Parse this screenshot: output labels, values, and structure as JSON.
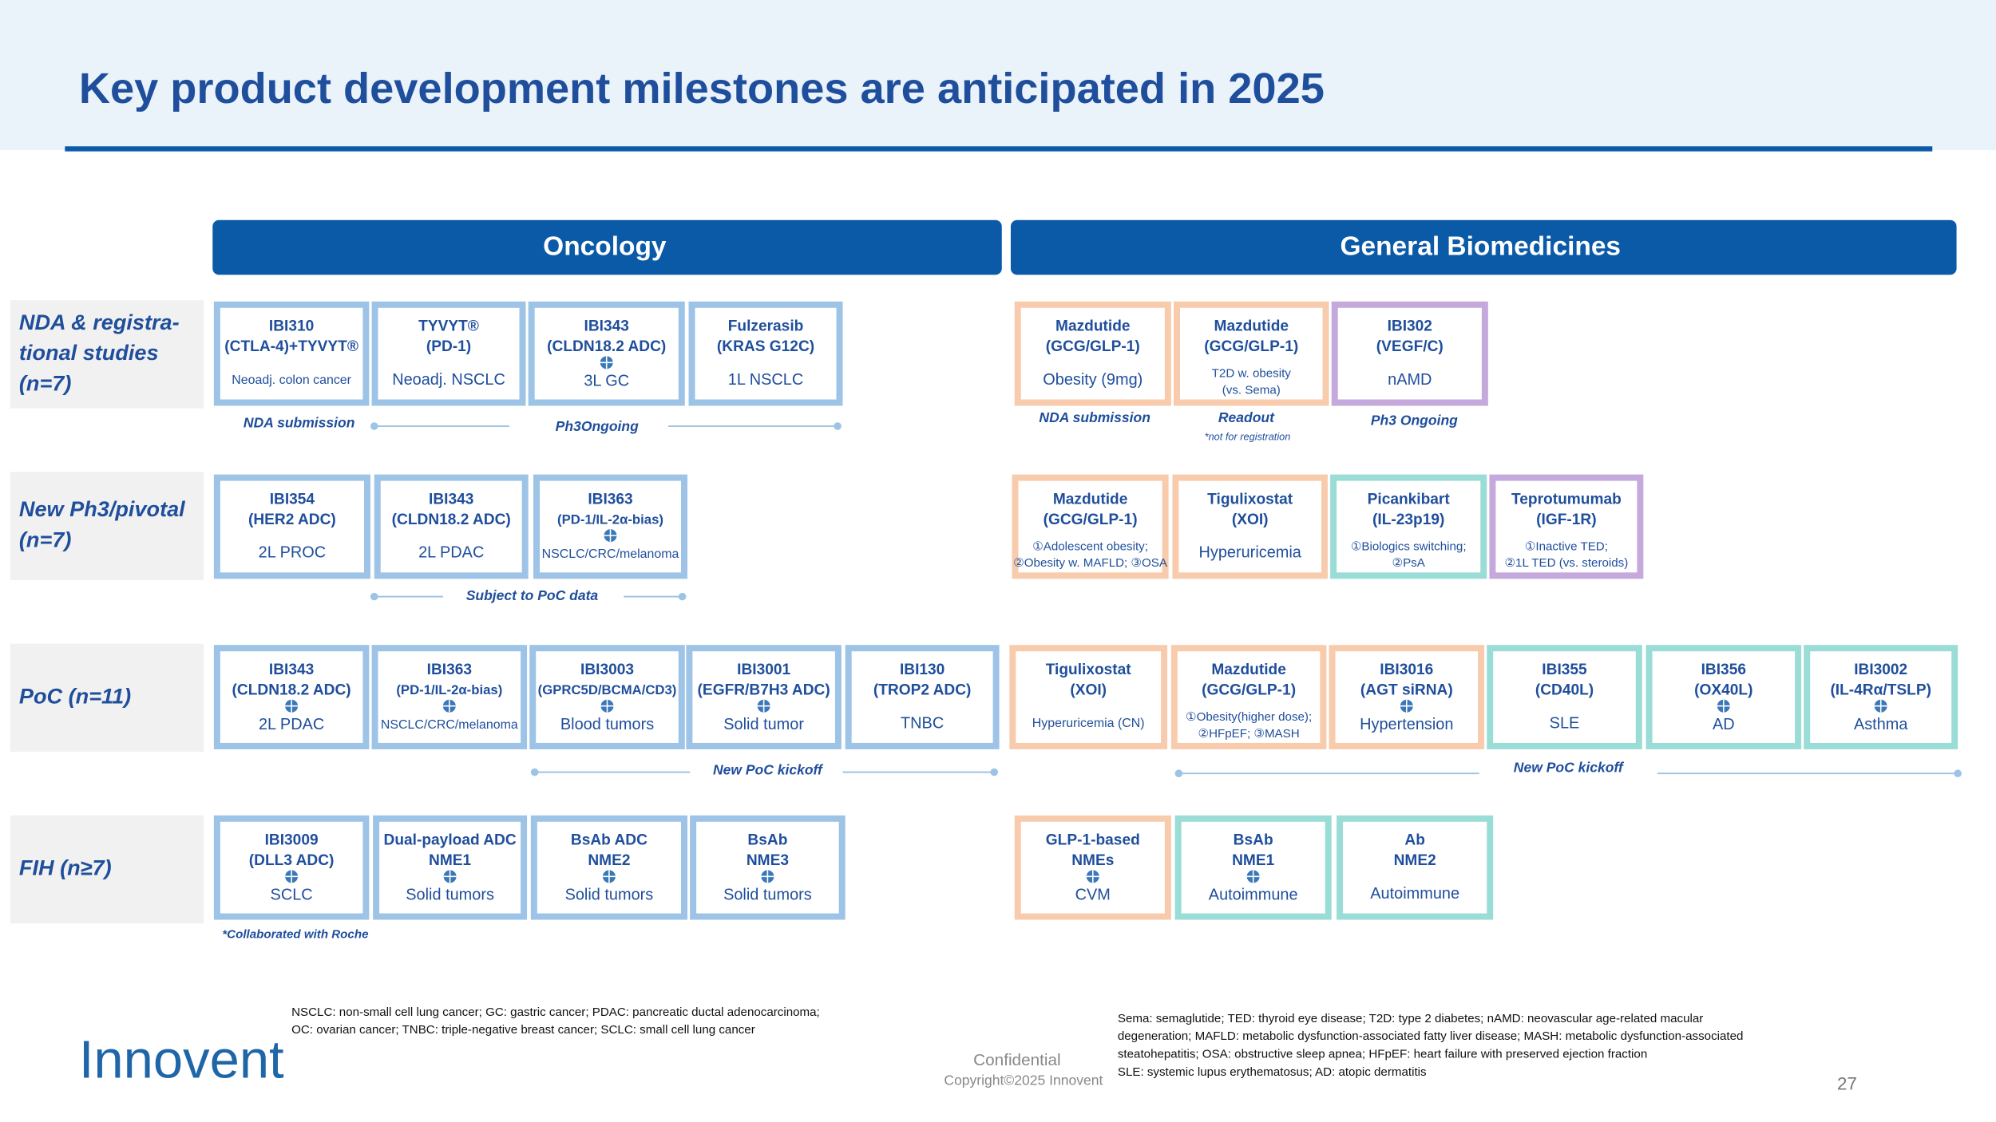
{
  "header": {
    "title": "Key product development milestones are  anticipated in 2025"
  },
  "sections": [
    "Oncology",
    "General Biomedicines"
  ],
  "rows": [
    {
      "label": [
        "NDA  & registra-",
        "tional studies",
        "(n=7)"
      ],
      "boxes": [
        {
          "lines": [
            "IBI310",
            "(CTLA-4)+TYVYT®",
            "Neoadj. colon cancer"
          ],
          "color": "#9dc3e6",
          "global": false
        },
        {
          "lines": [
            "TYVYT®",
            "(PD-1)",
            "Neoadj. NSCLC"
          ],
          "color": "#9dc3e6",
          "global": false
        },
        {
          "lines": [
            "IBI343",
            "(CLDN18.2 ADC)",
            "3L GC"
          ],
          "color": "#9dc3e6",
          "global": true
        },
        {
          "lines": [
            "Fulzerasib",
            "(KRAS G12C)",
            "1L NSCLC"
          ],
          "color": "#9dc3e6",
          "global": false
        },
        {
          "lines": [
            "Mazdutide",
            "(GCG/GLP-1)",
            "Obesity (9mg)"
          ],
          "color": "#f8cbad",
          "global": false
        },
        {
          "lines": [
            "Mazdutide",
            "(GCG/GLP-1)",
            "T2D w. obesity",
            "(vs. Sema)"
          ],
          "color": "#f8cbad",
          "global": false
        },
        {
          "lines": [
            "IBI302",
            "(VEGF/C)",
            "nAMD"
          ],
          "color": "#c5a9dc",
          "global": false
        }
      ],
      "notes": [
        "NDA submission",
        "Ph3Ongoing",
        "NDA submission",
        "Readout",
        "*not for registration",
        "Ph3 Ongoing"
      ]
    },
    {
      "label": [
        "New Ph3/pivotal",
        "(n=7)"
      ],
      "boxes": [
        {
          "lines": [
            "IBI354",
            "(HER2 ADC)",
            "2L PROC"
          ],
          "color": "#9dc3e6",
          "global": false
        },
        {
          "lines": [
            "IBI343",
            "(CLDN18.2 ADC)",
            "2L PDAC"
          ],
          "color": "#9dc3e6",
          "global": false
        },
        {
          "lines": [
            "IBI363",
            "(PD-1/IL-2α-bias)",
            "NSCLC/CRC/melanoma"
          ],
          "color": "#9dc3e6",
          "global": true
        },
        {
          "lines": [
            "Mazdutide",
            "(GCG/GLP-1)",
            "①Adolescent obesity;",
            "②Obesity w. MAFLD; ③OSA"
          ],
          "color": "#f8cbad",
          "global": false
        },
        {
          "lines": [
            "Tigulixostat",
            "(XOI)",
            "Hyperuricemia"
          ],
          "color": "#f8cbad",
          "global": false
        },
        {
          "lines": [
            "Picankibart",
            "(IL-23p19)",
            "①Biologics switching;",
            "②PsA"
          ],
          "color": "#9adcd6",
          "global": false
        },
        {
          "lines": [
            "Teprotumumab",
            "(IGF-1R)",
            "①Inactive TED;",
            "②1L TED (vs. steroids)"
          ],
          "color": "#c5a9dc",
          "global": false
        }
      ],
      "notes": [
        "Subject to PoC data"
      ]
    },
    {
      "label": [
        "PoC (n=11)"
      ],
      "boxes": [
        {
          "lines": [
            "IBI343",
            "(CLDN18.2 ADC)",
            "2L PDAC"
          ],
          "color": "#9dc3e6",
          "global": true
        },
        {
          "lines": [
            "IBI363",
            "(PD-1/IL-2α-bias)",
            "NSCLC/CRC/melanoma"
          ],
          "color": "#9dc3e6",
          "global": true
        },
        {
          "lines": [
            "IBI3003",
            "(GPRC5D/BCMA/CD3)",
            "Blood tumors"
          ],
          "color": "#9dc3e6",
          "global": true
        },
        {
          "lines": [
            "IBI3001",
            "(EGFR/B7H3 ADC)",
            "Solid tumor"
          ],
          "color": "#9dc3e6",
          "global": true
        },
        {
          "lines": [
            "IBI130",
            "(TROP2 ADC)",
            "TNBC"
          ],
          "color": "#9dc3e6",
          "global": false
        },
        {
          "lines": [
            "Tigulixostat",
            "(XOI)",
            "Hyperuricemia (CN)"
          ],
          "color": "#f8cbad",
          "global": false
        },
        {
          "lines": [
            "Mazdutide",
            "(GCG/GLP-1)",
            "①Obesity(higher dose);",
            "②HFpEF; ③MASH"
          ],
          "color": "#f8cbad",
          "global": false
        },
        {
          "lines": [
            "IBI3016",
            "(AGT siRNA)",
            "Hypertension"
          ],
          "color": "#f8cbad",
          "global": true
        },
        {
          "lines": [
            "IBI355",
            "(CD40L)",
            "SLE"
          ],
          "color": "#9adcd6",
          "global": false
        },
        {
          "lines": [
            "IBI356",
            "(OX40L)",
            "AD"
          ],
          "color": "#9adcd6",
          "global": true
        },
        {
          "lines": [
            "IBI3002",
            "(IL-4Rα/TSLP)",
            "Asthma"
          ],
          "color": "#9adcd6",
          "global": true
        }
      ],
      "notes": [
        "New PoC kickoff",
        "New PoC kickoff"
      ]
    },
    {
      "label": [
        "FIH (n≥7)"
      ],
      "boxes": [
        {
          "lines": [
            "IBI3009",
            "(DLL3 ADC)",
            "SCLC"
          ],
          "color": "#9dc3e6",
          "global": true
        },
        {
          "lines": [
            "Dual-payload ADC",
            "NME1",
            "Solid tumors"
          ],
          "color": "#9dc3e6",
          "global": true
        },
        {
          "lines": [
            "BsAb ADC",
            "NME2",
            "Solid tumors"
          ],
          "color": "#9dc3e6",
          "global": true
        },
        {
          "lines": [
            "BsAb",
            "NME3",
            "Solid tumors"
          ],
          "color": "#9dc3e6",
          "global": true
        },
        {
          "lines": [
            "GLP-1-based",
            "NMEs",
            "CVM"
          ],
          "color": "#f8cbad",
          "global": true
        },
        {
          "lines": [
            "BsAb",
            "NME1",
            "Autoimmune"
          ],
          "color": "#9adcd6",
          "global": true
        },
        {
          "lines": [
            "Ab",
            "NME2",
            "Autoimmune"
          ],
          "color": "#9adcd6",
          "global": false
        }
      ],
      "notes": [
        "*Collaborated with Roche"
      ]
    }
  ],
  "footnotes": {
    "left": [
      "NSCLC: non-small cell lung cancer; GC: gastric cancer; PDAC: pancreatic ductal adenocarcinoma;",
      "OC: ovarian cancer; TNBC: triple-negative breast cancer; SCLC: small cell lung cancer"
    ],
    "right": [
      "Sema: semaglutide; TED: thyroid eye disease; T2D: type 2 diabetes; nAMD: neovascular age-related macular",
      "degeneration; MAFLD: metabolic dysfunction-associated fatty liver disease; MASH: metabolic dysfunction-associated",
      "steatohepatitis; OSA: obstructive sleep apnea; HFpEF: heart failure with preserved ejection fraction",
      "SLE: systemic lupus erythematosus; AD: atopic dermatitis"
    ]
  },
  "footer": {
    "logo": "Innovent",
    "confidential": "Confidential",
    "copyright": "Copyright©2025 Innovent",
    "page": "27"
  }
}
